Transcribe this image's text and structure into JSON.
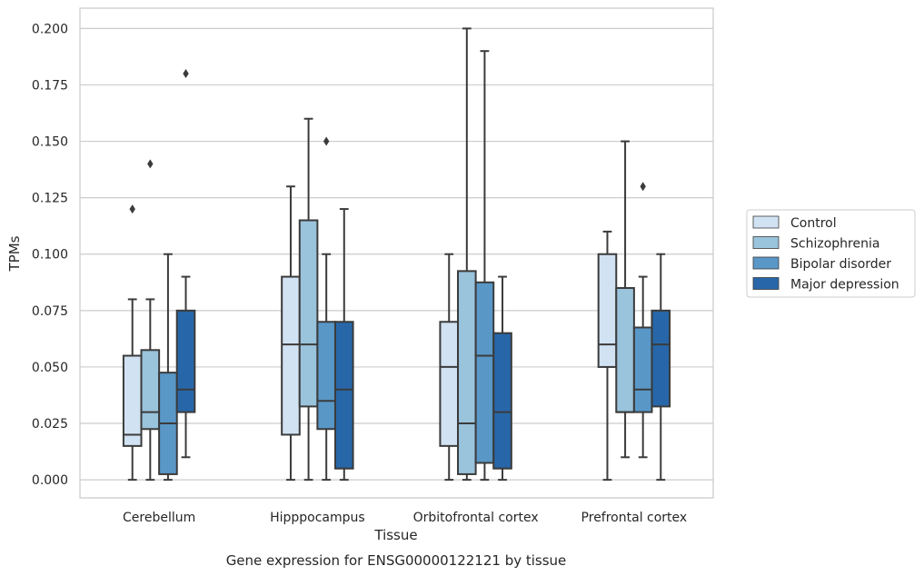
{
  "chart_data": {
    "type": "box",
    "caption": "Gene expression for ENSG00000122121 by tissue",
    "xlabel": "Tissue",
    "ylabel": "TPMs",
    "ylim": [
      -0.008,
      0.209
    ],
    "yticks": [
      "0.000",
      "0.025",
      "0.050",
      "0.075",
      "0.100",
      "0.125",
      "0.150",
      "0.175",
      "0.200"
    ],
    "ytick_values": [
      0,
      0.025,
      0.05,
      0.075,
      0.1,
      0.125,
      0.15,
      0.175,
      0.2
    ],
    "categories": [
      "Cerebellum",
      "Hipppocampus",
      "Orbitofrontal cortex",
      "Prefrontal cortex"
    ],
    "grid": "horizontal",
    "legend_position": "right",
    "series": [
      {
        "name": "Control",
        "color": "#d1e2f2",
        "boxes": [
          {
            "whislo": 0.0,
            "q1": 0.015,
            "med": 0.02,
            "q3": 0.055,
            "whishi": 0.08,
            "fliers": [
              0.12
            ]
          },
          {
            "whislo": 0.0,
            "q1": 0.02,
            "med": 0.06,
            "q3": 0.09,
            "whishi": 0.13,
            "fliers": []
          },
          {
            "whislo": 0.0,
            "q1": 0.015,
            "med": 0.05,
            "q3": 0.07,
            "whishi": 0.1,
            "fliers": []
          },
          {
            "whislo": 0.0,
            "q1": 0.05,
            "med": 0.06,
            "q3": 0.1,
            "whishi": 0.11,
            "fliers": []
          }
        ]
      },
      {
        "name": "Schizophrenia",
        "color": "#9ac3dc",
        "boxes": [
          {
            "whislo": 0.0,
            "q1": 0.0225,
            "med": 0.03,
            "q3": 0.0575,
            "whishi": 0.08,
            "fliers": [
              0.14
            ]
          },
          {
            "whislo": 0.0,
            "q1": 0.0325,
            "med": 0.06,
            "q3": 0.115,
            "whishi": 0.16,
            "fliers": []
          },
          {
            "whislo": 0.0,
            "q1": 0.0025,
            "med": 0.025,
            "q3": 0.0925,
            "whishi": 0.2,
            "fliers": []
          },
          {
            "whislo": 0.01,
            "q1": 0.03,
            "med": 0.03,
            "q3": 0.085,
            "whishi": 0.15,
            "fliers": []
          }
        ]
      },
      {
        "name": "Bipolar disorder",
        "color": "#5997c7",
        "boxes": [
          {
            "whislo": 0.0,
            "q1": 0.0025,
            "med": 0.025,
            "q3": 0.0475,
            "whishi": 0.1,
            "fliers": []
          },
          {
            "whislo": 0.0,
            "q1": 0.0225,
            "med": 0.035,
            "q3": 0.07,
            "whishi": 0.1,
            "fliers": [
              0.15
            ]
          },
          {
            "whislo": 0.0,
            "q1": 0.0075,
            "med": 0.055,
            "q3": 0.0875,
            "whishi": 0.19,
            "fliers": []
          },
          {
            "whislo": 0.01,
            "q1": 0.03,
            "med": 0.04,
            "q3": 0.0675,
            "whishi": 0.09,
            "fliers": [
              0.13
            ]
          }
        ]
      },
      {
        "name": "Major depression",
        "color": "#2767a9",
        "boxes": [
          {
            "whislo": 0.01,
            "q1": 0.03,
            "med": 0.04,
            "q3": 0.075,
            "whishi": 0.09,
            "fliers": [
              0.18
            ]
          },
          {
            "whislo": 0.0,
            "q1": 0.005,
            "med": 0.04,
            "q3": 0.07,
            "whishi": 0.12,
            "fliers": []
          },
          {
            "whislo": 0.0,
            "q1": 0.005,
            "med": 0.03,
            "q3": 0.065,
            "whishi": 0.09,
            "fliers": []
          },
          {
            "whislo": 0.0,
            "q1": 0.0325,
            "med": 0.06,
            "q3": 0.075,
            "whishi": 0.1,
            "fliers": []
          }
        ]
      }
    ]
  }
}
